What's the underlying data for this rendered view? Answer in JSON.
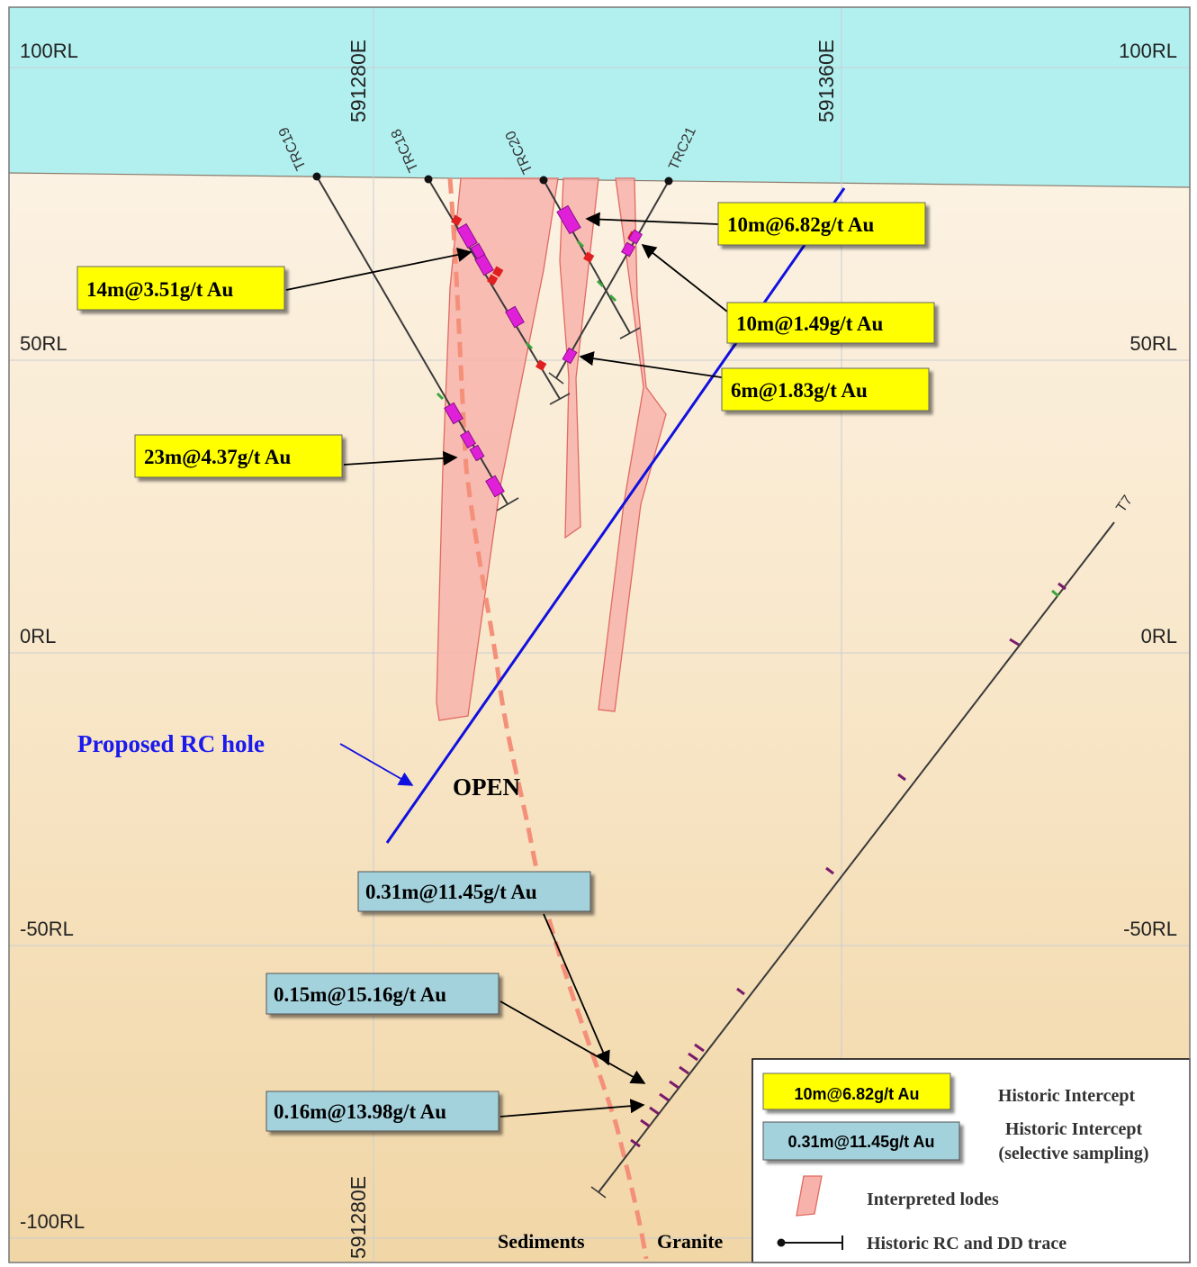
{
  "rl_labels": [
    "100RL",
    "50RL",
    "0RL",
    "-50RL",
    "-100RL"
  ],
  "easting_labels": {
    "top_left": "591280E",
    "top_right": "591360E",
    "bottom": "591280E"
  },
  "drill_holes": [
    "TRC19",
    "TRC18",
    "TRC20",
    "TRC21",
    "T7"
  ],
  "historic_intercepts": [
    "10m@6.82g/t Au",
    "14m@3.51g/t Au",
    "10m@1.49g/t Au",
    "6m@1.83g/t Au",
    "23m@4.37g/t Au"
  ],
  "selective_intercepts": [
    "0.31m@11.45g/t Au",
    "0.15m@15.16g/t Au",
    "0.16m@13.98g/t Au"
  ],
  "annotations": {
    "proposed_hole": "Proposed RC hole",
    "open": "OPEN",
    "sediments": "Sediments",
    "granite": "Granite"
  },
  "legend": {
    "sample_yellow": "10m@6.82g/t Au",
    "label_yellow": "Historic Intercept",
    "sample_blue": "0.31m@11.45g/t Au",
    "label_blue_1": "Historic Intercept",
    "label_blue_2": "(selective sampling)",
    "label_lodes": "Interpreted lodes",
    "label_trace": "Historic RC and DD trace"
  },
  "colors": {
    "sky": "#b2f0f0",
    "ground_top": "#fdf5ea",
    "ground_bottom": "#f2d9ab",
    "lode_fill": "#f7b3ab",
    "lode_stroke": "#e06a62",
    "contact": "#f4907a",
    "proposed_hole": "#1010e0",
    "intercept_yellow": "#ffff00",
    "intercept_blue": "#a3d1dc",
    "mineralised": "#e020d8"
  }
}
